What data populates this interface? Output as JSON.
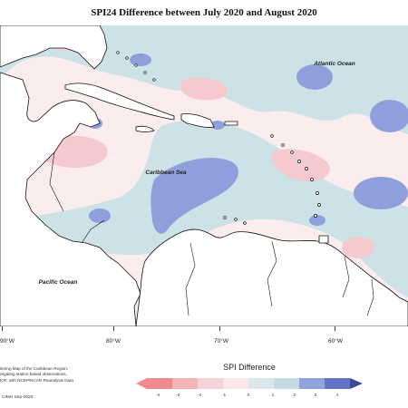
{
  "title": "SPI24 Difference between July 2020 and August 2020",
  "labels": {
    "atlantic": "Atlantic Ocean",
    "caribbean": "Caribbean Sea",
    "pacific": "Pacific Ocean"
  },
  "longitude_ticks": [
    "90°W",
    "80°W",
    "70°W",
    "60°W"
  ],
  "credits": [
    "itoring Map of the Caribbean Region.",
    "regating station based observations,",
    "IOF, with NCEP/NCAR Reanalysis Data"
  ],
  "date_stamp": "CIMH Sep-2020",
  "legend": {
    "title": "SPI Difference",
    "ticks": [
      "-4",
      "-3",
      "-2",
      "-1",
      "0",
      "1",
      "2",
      "3",
      "4"
    ],
    "colors": [
      "#f08a8f",
      "#f5b4b8",
      "#f8d3d6",
      "#fbe8ea",
      "#dbe7ea",
      "#c5dbe2",
      "#8fa3dd",
      "#6374c7",
      "#3f4a9a"
    ]
  },
  "colors": {
    "neutral_fill": "#fbecee",
    "light_blue_fill": "#cde2e7",
    "medium_blue_fill": "#8e9fdc",
    "pink_fill": "#f6c9cf",
    "land": "#ffffff",
    "coast": "#111111"
  }
}
